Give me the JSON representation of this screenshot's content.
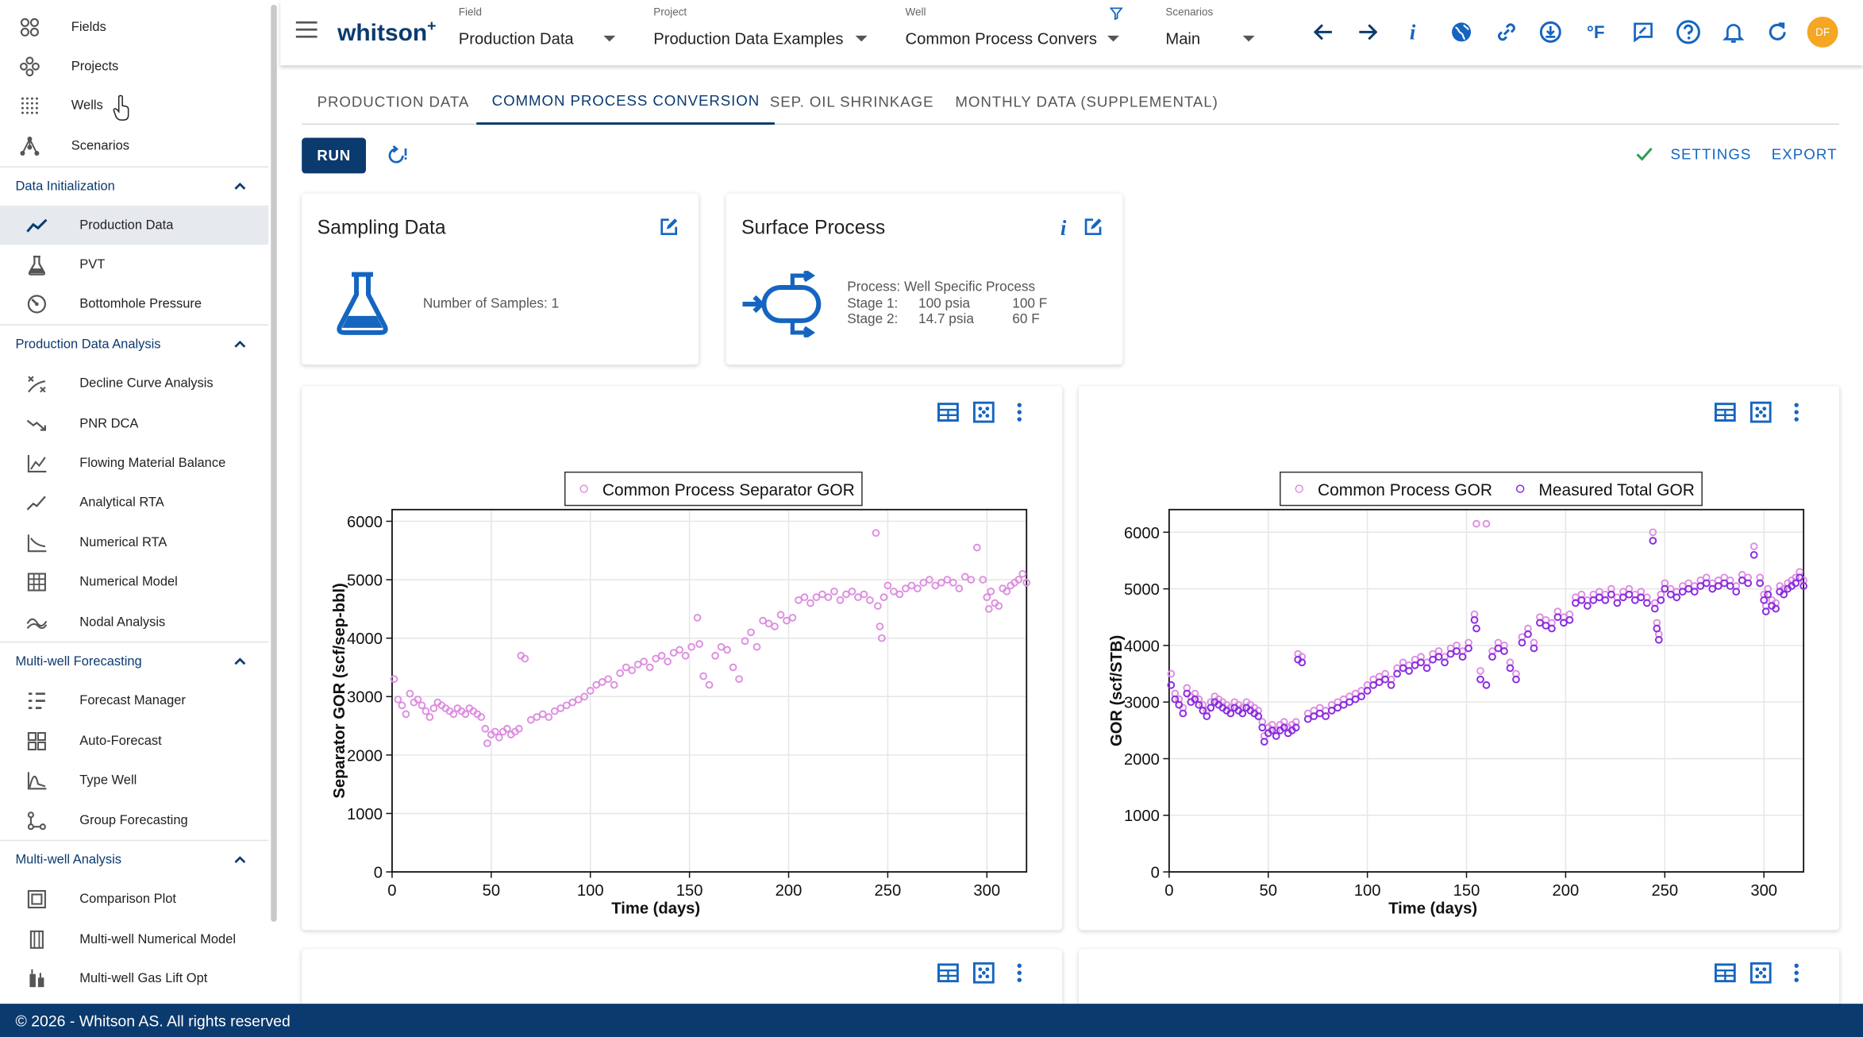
{
  "sidebar": {
    "top_items": [
      {
        "label": "Fields",
        "icon": "fields-icon"
      },
      {
        "label": "Projects",
        "icon": "projects-icon"
      },
      {
        "label": "Wells",
        "icon": "wells-icon"
      },
      {
        "label": "Scenarios",
        "icon": "scenarios-icon"
      }
    ],
    "sections": [
      {
        "title": "Data Initialization",
        "items": [
          {
            "label": "Production Data",
            "icon": "production-data-icon",
            "active": true
          },
          {
            "label": "PVT",
            "icon": "pvt-icon"
          },
          {
            "label": "Bottomhole Pressure",
            "icon": "bottomhole-pressure-icon"
          }
        ]
      },
      {
        "title": "Production Data Analysis",
        "items": [
          {
            "label": "Decline Curve Analysis",
            "icon": "decline-curve-icon"
          },
          {
            "label": "PNR DCA",
            "icon": "pnr-dca-icon"
          },
          {
            "label": "Flowing Material Balance",
            "icon": "flowing-material-balance-icon"
          },
          {
            "label": "Analytical RTA",
            "icon": "analytical-rta-icon"
          },
          {
            "label": "Numerical RTA",
            "icon": "numerical-rta-icon"
          },
          {
            "label": "Numerical Model",
            "icon": "numerical-model-icon"
          },
          {
            "label": "Nodal Analysis",
            "icon": "nodal-analysis-icon"
          }
        ]
      },
      {
        "title": "Multi-well Forecasting",
        "items": [
          {
            "label": "Forecast Manager",
            "icon": "forecast-manager-icon"
          },
          {
            "label": "Auto-Forecast",
            "icon": "auto-forecast-icon"
          },
          {
            "label": "Type Well",
            "icon": "type-well-icon"
          },
          {
            "label": "Group Forecasting",
            "icon": "group-forecasting-icon"
          }
        ]
      },
      {
        "title": "Multi-well Analysis",
        "items": [
          {
            "label": "Comparison Plot",
            "icon": "comparison-plot-icon"
          },
          {
            "label": "Multi-well Numerical Model",
            "icon": "multi-well-numerical-model-icon"
          },
          {
            "label": "Multi-well Gas Lift Opt",
            "icon": "multi-well-gas-lift-icon"
          }
        ]
      }
    ]
  },
  "header": {
    "logo_text": "whitson",
    "logo_sup": "+",
    "field": {
      "caption": "Field",
      "value": "Production Data"
    },
    "project": {
      "caption": "Project",
      "value": "Production Data Examples"
    },
    "well": {
      "caption": "Well",
      "value": "Common Process Conversi"
    },
    "scenario": {
      "caption": "Scenarios",
      "value": "Main"
    },
    "temp_unit": "°F",
    "info_glyph": "i",
    "avatar": "DF"
  },
  "tabs": [
    {
      "label": "PRODUCTION DATA"
    },
    {
      "label": "COMMON PROCESS CONVERSION",
      "active": true
    },
    {
      "label": "SEP. OIL SHRINKAGE"
    },
    {
      "label": "MONTHLY DATA (SUPPLEMENTAL)"
    }
  ],
  "toolbar": {
    "run_label": "RUN",
    "settings_label": "SETTINGS",
    "export_label": "EXPORT"
  },
  "sampling": {
    "title": "Sampling Data",
    "text": "Number of Samples: 1"
  },
  "surface": {
    "title": "Surface Process",
    "process": "Process: Well Specific Process",
    "stage1_name": "Stage 1:",
    "stage1_p": "100 psia",
    "stage1_t": "100 F",
    "stage2_name": "Stage 2:",
    "stage2_p": "14.7 psia",
    "stage2_t": "60 F"
  },
  "chart_data": [
    {
      "type": "scatter",
      "xlabel": "Time (days)",
      "ylabel": "Separator GOR (scf/sep-bbl)",
      "xlim": [
        0,
        320
      ],
      "ylim": [
        0,
        6200
      ],
      "xticks": [
        0,
        50,
        100,
        150,
        200,
        250,
        300
      ],
      "yticks": [
        0,
        1000,
        2000,
        3000,
        4000,
        5000,
        6000
      ],
      "legend": "top-center",
      "grid": true,
      "series": [
        {
          "name": "Common Process Separator GOR",
          "color": "#dd8fe0",
          "style": "open-circle",
          "x": [
            1,
            3,
            5,
            7,
            9,
            11,
            13,
            15,
            17,
            19,
            21,
            23,
            25,
            27,
            29,
            31,
            33,
            35,
            37,
            39,
            41,
            43,
            45,
            47,
            48,
            50,
            52,
            54,
            56,
            58,
            60,
            62,
            64,
            65,
            67,
            70,
            73,
            76,
            79,
            82,
            85,
            88,
            91,
            94,
            97,
            100,
            103,
            106,
            109,
            112,
            115,
            118,
            121,
            124,
            127,
            130,
            133,
            136,
            139,
            142,
            145,
            148,
            151,
            154,
            155,
            157,
            160,
            163,
            166,
            169,
            172,
            175,
            178,
            181,
            184,
            187,
            190,
            193,
            196,
            199,
            202,
            205,
            208,
            211,
            214,
            217,
            220,
            223,
            226,
            229,
            232,
            235,
            238,
            241,
            244,
            245,
            246,
            247,
            248,
            250,
            253,
            256,
            259,
            262,
            265,
            268,
            271,
            274,
            277,
            280,
            283,
            286,
            289,
            292,
            295,
            298,
            300,
            301,
            302,
            304,
            306,
            308,
            310,
            312,
            314,
            316,
            318,
            320
          ],
          "y": [
            3300,
            2950,
            2850,
            2700,
            3050,
            2900,
            2950,
            2850,
            2750,
            2650,
            2800,
            2900,
            2850,
            2800,
            2750,
            2700,
            2800,
            2750,
            2700,
            2800,
            2750,
            2700,
            2650,
            2450,
            2200,
            2350,
            2400,
            2300,
            2400,
            2450,
            2350,
            2400,
            2450,
            3700,
            3650,
            2600,
            2650,
            2700,
            2650,
            2750,
            2800,
            2850,
            2900,
            2950,
            3000,
            3100,
            3200,
            3250,
            3300,
            3200,
            3400,
            3500,
            3450,
            3550,
            3600,
            3500,
            3650,
            3700,
            3600,
            3750,
            3800,
            3700,
            3850,
            4350,
            3900,
            3350,
            3200,
            3700,
            3850,
            3800,
            3500,
            3300,
            3950,
            4100,
            3850,
            4300,
            4250,
            4200,
            4400,
            4300,
            4350,
            4650,
            4700,
            4600,
            4700,
            4750,
            4700,
            4800,
            4650,
            4750,
            4800,
            4700,
            4750,
            4650,
            5800,
            4550,
            4200,
            4000,
            4700,
            4900,
            4800,
            4750,
            4850,
            4900,
            4850,
            4950,
            5000,
            4900,
            4950,
            5000,
            4950,
            4850,
            5050,
            5000,
            5550,
            5000,
            4700,
            4500,
            4800,
            4600,
            4550,
            4850,
            4800,
            4900,
            4950,
            5000,
            5100,
            4950
          ]
        }
      ]
    },
    {
      "type": "scatter",
      "xlabel": "Time (days)",
      "ylabel": "GOR (scf/STB)",
      "xlim": [
        0,
        320
      ],
      "ylim": [
        0,
        6400
      ],
      "xticks": [
        0,
        50,
        100,
        150,
        200,
        250,
        300
      ],
      "yticks": [
        0,
        1000,
        2000,
        3000,
        4000,
        5000,
        6000
      ],
      "legend": "top-center",
      "grid": true,
      "series": [
        {
          "name": "Common Process GOR",
          "color": "#dd8fe0",
          "style": "open-circle",
          "x": [
            1,
            3,
            5,
            7,
            9,
            11,
            13,
            15,
            17,
            19,
            21,
            23,
            25,
            27,
            29,
            31,
            33,
            35,
            37,
            39,
            41,
            43,
            45,
            47,
            48,
            50,
            52,
            54,
            56,
            58,
            60,
            62,
            64,
            65,
            67,
            70,
            73,
            76,
            79,
            82,
            85,
            88,
            91,
            94,
            97,
            100,
            103,
            106,
            109,
            112,
            115,
            118,
            121,
            124,
            127,
            130,
            133,
            136,
            139,
            142,
            145,
            148,
            151,
            154,
            155,
            157,
            160,
            163,
            166,
            169,
            172,
            175,
            178,
            181,
            184,
            187,
            190,
            193,
            196,
            199,
            202,
            205,
            208,
            211,
            214,
            217,
            220,
            223,
            226,
            229,
            232,
            235,
            238,
            241,
            244,
            245,
            246,
            247,
            248,
            250,
            253,
            256,
            259,
            262,
            265,
            268,
            271,
            274,
            277,
            280,
            283,
            286,
            289,
            292,
            295,
            298,
            300,
            301,
            302,
            304,
            306,
            308,
            310,
            312,
            314,
            316,
            318,
            320
          ],
          "y": [
            3500,
            3150,
            3050,
            2900,
            3250,
            3100,
            3150,
            3050,
            2950,
            2850,
            3000,
            3100,
            3050,
            3000,
            2950,
            2900,
            3000,
            2950,
            2900,
            3000,
            2950,
            2900,
            2850,
            2650,
            2400,
            2550,
            2600,
            2500,
            2600,
            2650,
            2550,
            2600,
            2650,
            3850,
            3800,
            2800,
            2850,
            2900,
            2850,
            2950,
            3000,
            3050,
            3100,
            3150,
            3200,
            3300,
            3400,
            3450,
            3500,
            3400,
            3600,
            3700,
            3650,
            3750,
            3800,
            3700,
            3850,
            3900,
            3800,
            3950,
            4000,
            3900,
            4050,
            4550,
            6150,
            3550,
            6150,
            3900,
            4050,
            4000,
            3700,
            3500,
            4150,
            4300,
            4050,
            4500,
            4450,
            4400,
            4600,
            4500,
            4550,
            4850,
            4900,
            4800,
            4900,
            4950,
            4900,
            5000,
            4850,
            4950,
            5000,
            4900,
            4950,
            4850,
            6000,
            4750,
            4400,
            4200,
            4900,
            5100,
            5000,
            4950,
            5050,
            5100,
            5050,
            5150,
            5200,
            5100,
            5150,
            5200,
            5150,
            5050,
            5250,
            5200,
            5750,
            5200,
            4900,
            4700,
            5000,
            4800,
            4750,
            5050,
            5000,
            5100,
            5150,
            5200,
            5300,
            5150
          ]
        },
        {
          "name": "Measured Total GOR",
          "color": "#8a2be2",
          "style": "open-circle",
          "x": [
            1,
            3,
            5,
            7,
            9,
            11,
            13,
            15,
            17,
            19,
            21,
            23,
            25,
            27,
            29,
            31,
            33,
            35,
            37,
            39,
            41,
            43,
            45,
            47,
            48,
            50,
            52,
            54,
            56,
            58,
            60,
            62,
            64,
            65,
            67,
            70,
            73,
            76,
            79,
            82,
            85,
            88,
            91,
            94,
            97,
            100,
            103,
            106,
            109,
            112,
            115,
            118,
            121,
            124,
            127,
            130,
            133,
            136,
            139,
            142,
            145,
            148,
            151,
            154,
            155,
            157,
            160,
            163,
            166,
            169,
            172,
            175,
            178,
            181,
            184,
            187,
            190,
            193,
            196,
            199,
            202,
            205,
            208,
            211,
            214,
            217,
            220,
            223,
            226,
            229,
            232,
            235,
            238,
            241,
            244,
            245,
            246,
            247,
            248,
            250,
            253,
            256,
            259,
            262,
            265,
            268,
            271,
            274,
            277,
            280,
            283,
            286,
            289,
            292,
            295,
            298,
            300,
            301,
            302,
            304,
            306,
            308,
            310,
            312,
            314,
            316,
            318,
            320
          ],
          "y": [
            3300,
            3050,
            2950,
            2800,
            3150,
            3000,
            3050,
            2950,
            2850,
            2750,
            2900,
            3000,
            2950,
            2900,
            2850,
            2800,
            2900,
            2850,
            2800,
            2900,
            2850,
            2800,
            2750,
            2550,
            2300,
            2450,
            2500,
            2400,
            2500,
            2550,
            2450,
            2500,
            2550,
            3750,
            3700,
            2700,
            2750,
            2800,
            2750,
            2850,
            2900,
            2950,
            3000,
            3050,
            3100,
            3200,
            3300,
            3350,
            3400,
            3300,
            3500,
            3600,
            3550,
            3650,
            3700,
            3600,
            3750,
            3800,
            3700,
            3850,
            3900,
            3800,
            3950,
            4450,
            4300,
            3400,
            3300,
            3800,
            3950,
            3900,
            3600,
            3400,
            4050,
            4200,
            3950,
            4400,
            4350,
            4300,
            4500,
            4400,
            4450,
            4750,
            4800,
            4700,
            4800,
            4850,
            4800,
            4900,
            4750,
            4850,
            4900,
            4800,
            4850,
            4750,
            5850,
            4650,
            4300,
            4100,
            4800,
            5000,
            4900,
            4850,
            4950,
            5000,
            4950,
            5050,
            5100,
            5000,
            5050,
            5100,
            5050,
            4950,
            5150,
            5100,
            5600,
            5100,
            4800,
            4600,
            4900,
            4700,
            4650,
            4950,
            4900,
            5000,
            5050,
            5100,
            5200,
            5050
          ]
        }
      ]
    }
  ],
  "footer": {
    "text": "© 2026 - Whitson AS. All rights reserved"
  }
}
